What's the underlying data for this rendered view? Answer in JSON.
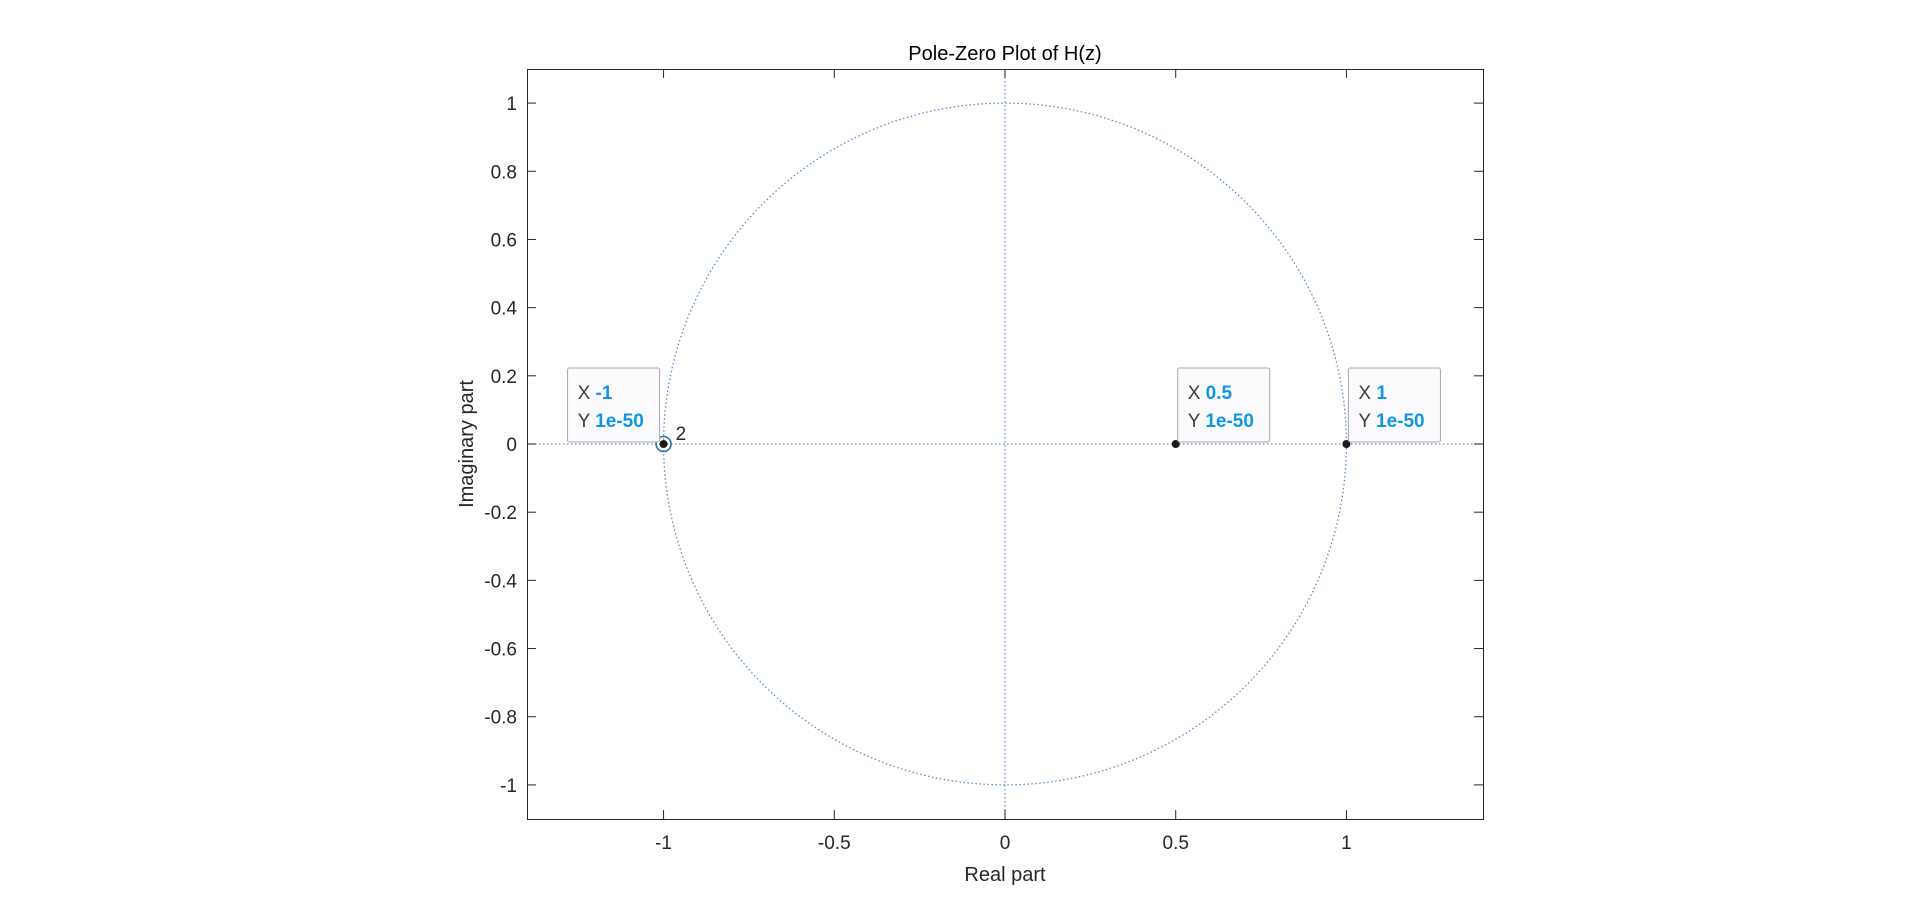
{
  "chart_data": {
    "type": "scatter",
    "title": "Pole-Zero Plot of H(z)",
    "xlabel": "Real part",
    "ylabel": "Imaginary part",
    "xlim": [
      -1.4,
      1.4
    ],
    "ylim": [
      -1.1,
      1.1
    ],
    "xticks": [
      -1,
      -0.5,
      0,
      0.5,
      1
    ],
    "yticks": [
      -1,
      -0.8,
      -0.6,
      -0.4,
      -0.2,
      0,
      0.2,
      0.4,
      0.6,
      0.8,
      1
    ],
    "xtick_labels": [
      "-1",
      "-0.5",
      "0",
      "0.5",
      "1"
    ],
    "ytick_labels": [
      "-1",
      "-0.8",
      "-0.6",
      "-0.4",
      "-0.2",
      "0",
      "0.2",
      "0.4",
      "0.6",
      "0.8",
      "1"
    ],
    "unit_circle": true,
    "grid": false,
    "points": [
      {
        "x": -1,
        "y": 0,
        "kind": "zero",
        "multiplicity_label": "2"
      },
      {
        "x": 0.5,
        "y": 0,
        "kind": "pole"
      },
      {
        "x": 1,
        "y": 0,
        "kind": "pole"
      }
    ],
    "datatips": [
      {
        "x_label": "X",
        "x_value": "-1",
        "y_label": "Y",
        "y_value": "1e-50",
        "at_x": -1,
        "at_y": 0,
        "side": "left"
      },
      {
        "x_label": "X",
        "x_value": "0.5",
        "y_label": "Y",
        "y_value": "1e-50",
        "at_x": 0.5,
        "at_y": 0,
        "side": "right"
      },
      {
        "x_label": "X",
        "x_value": "1",
        "y_label": "Y",
        "y_value": "1e-50",
        "at_x": 1,
        "at_y": 0,
        "side": "right"
      }
    ]
  },
  "colors": {
    "axis": "#262626",
    "circle": "#5b8fbf",
    "marker": "#1a1a1a",
    "zero_ring": "#2f6fa8",
    "datatip_value": "#0f96e6",
    "datatip_border": "#a8a8a8",
    "datatip_bg": "#fbfbfd"
  }
}
